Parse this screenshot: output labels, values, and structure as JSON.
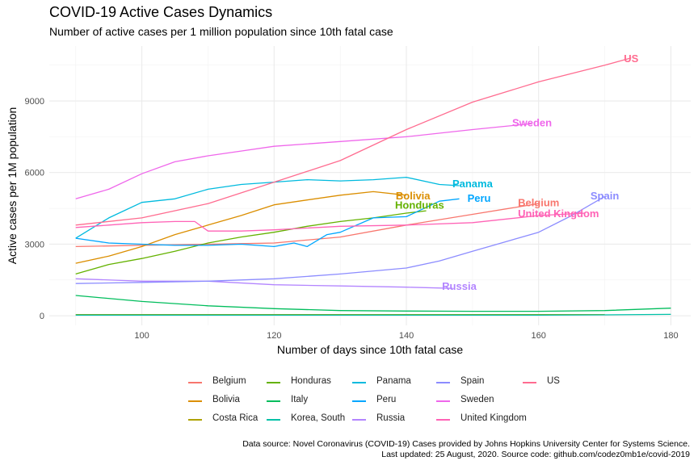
{
  "title": "COVID-19 Active Cases Dynamics",
  "subtitle": "Number of active cases per 1 million population since 10th fatal case",
  "caption_line1": "Data source: Novel Coronavirus (COVID-19) Cases provided by Johns Hopkins University Center for Systems Science.",
  "caption_line2": "Last updated: 25 August, 2020. Source code: github.com/codez0mb1e/covid-2019",
  "chart_data": {
    "type": "line",
    "title": "COVID-19 Active Cases Dynamics",
    "subtitle": "Number of active cases per 1 million population since 10th fatal case",
    "xlabel": "Number of days since 10th fatal case",
    "ylabel": "Active cases per 1M population",
    "xlim": [
      86,
      183
    ],
    "ylim": [
      -400,
      11300
    ],
    "xticks": [
      100,
      120,
      140,
      160,
      180
    ],
    "yticks": [
      0,
      3000,
      6000,
      9000
    ],
    "grid": true,
    "legend_position": "bottom",
    "series": [
      {
        "name": "Belgium",
        "color": "#F8766D",
        "x": [
          90,
          100,
          110,
          120,
          130,
          140,
          150,
          160
        ],
        "y": [
          2900,
          2950,
          3000,
          3050,
          3300,
          3800,
          4250,
          4700
        ],
        "label": "Belgium",
        "label_pos": [
          160,
          4750
        ]
      },
      {
        "name": "Bolivia",
        "color": "#DB8E00",
        "x": [
          90,
          95,
          100,
          105,
          110,
          115,
          120,
          125,
          130,
          135,
          140
        ],
        "y": [
          2200,
          2500,
          2900,
          3400,
          3800,
          4200,
          4650,
          4850,
          5050,
          5200,
          5050
        ],
        "label": "Bolivia",
        "label_pos": [
          141,
          5050
        ]
      },
      {
        "name": "Costa Rica",
        "color": "#AEA200",
        "x": [
          90,
          95,
          100,
          110,
          120,
          130,
          140,
          150,
          160,
          170
        ],
        "y": [
          50,
          50,
          50,
          50,
          50,
          50,
          50,
          50,
          50,
          50
        ]
      },
      {
        "name": "Honduras",
        "color": "#64B200",
        "x": [
          90,
          95,
          100,
          105,
          110,
          115,
          120,
          125,
          130,
          135,
          140,
          143
        ],
        "y": [
          1750,
          2150,
          2400,
          2700,
          3050,
          3300,
          3500,
          3750,
          3950,
          4100,
          4300,
          4400
        ],
        "label": "Honduras",
        "label_pos": [
          142,
          4650
        ]
      },
      {
        "name": "Italy",
        "color": "#00BD5C",
        "x": [
          90,
          100,
          110,
          120,
          130,
          140,
          150,
          160,
          170,
          180
        ],
        "y": [
          850,
          600,
          420,
          300,
          220,
          200,
          190,
          190,
          220,
          320
        ]
      },
      {
        "name": "Korea, South",
        "color": "#00C1A7",
        "x": [
          90,
          95,
          100,
          110,
          120,
          130,
          140,
          150,
          160,
          170,
          180
        ],
        "y": [
          30,
          30,
          30,
          30,
          30,
          30,
          30,
          30,
          30,
          40,
          60
        ]
      },
      {
        "name": "Panama",
        "color": "#00BADE",
        "x": [
          90,
          95,
          100,
          105,
          110,
          115,
          120,
          125,
          130,
          135,
          140,
          145,
          148
        ],
        "y": [
          3250,
          4100,
          4750,
          4900,
          5300,
          5500,
          5600,
          5700,
          5650,
          5700,
          5800,
          5500,
          5450
        ],
        "label": "Panama",
        "label_pos": [
          150,
          5550
        ]
      },
      {
        "name": "Peru",
        "color": "#00A6FF",
        "x": [
          90,
          95,
          100,
          105,
          110,
          115,
          120,
          123,
          125,
          128,
          130,
          135,
          140,
          145,
          148
        ],
        "y": [
          3250,
          3050,
          3000,
          2950,
          2950,
          3000,
          2900,
          3050,
          2900,
          3400,
          3500,
          4100,
          4150,
          4800,
          4900
        ],
        "label": "Peru",
        "label_pos": [
          151,
          4950
        ]
      },
      {
        "name": "Russia",
        "color": "#B385FF",
        "x": [
          90,
          100,
          110,
          120,
          130,
          140,
          147
        ],
        "y": [
          1550,
          1450,
          1450,
          1300,
          1250,
          1200,
          1150
        ],
        "label": "Russia",
        "label_pos": [
          148,
          1250
        ]
      },
      {
        "name": "Spain",
        "color": "#8C8CFF",
        "x": [
          90,
          100,
          110,
          120,
          130,
          140,
          145,
          150,
          155,
          160,
          165,
          170
        ],
        "y": [
          1350,
          1400,
          1450,
          1550,
          1750,
          2000,
          2300,
          2700,
          3100,
          3500,
          4200,
          5000
        ],
        "label": "Spain",
        "label_pos": [
          170,
          5050
        ]
      },
      {
        "name": "Sweden",
        "color": "#EF67EB",
        "x": [
          90,
          95,
          100,
          105,
          110,
          115,
          120,
          130,
          140,
          150,
          159
        ],
        "y": [
          4900,
          5300,
          5950,
          6450,
          6700,
          6900,
          7100,
          7300,
          7500,
          7800,
          8050
        ],
        "label": "Sweden",
        "label_pos": [
          159,
          8100
        ]
      },
      {
        "name": "United Kingdom",
        "color": "#FF63B6",
        "x": [
          90,
          95,
          100,
          105,
          108,
          110,
          115,
          120,
          130,
          140,
          150,
          160,
          167
        ],
        "y": [
          3700,
          3800,
          3900,
          3950,
          3950,
          3550,
          3550,
          3600,
          3750,
          3800,
          3900,
          4200,
          4300
        ],
        "label": "United Kingdom",
        "label_pos": [
          163,
          4300
        ]
      },
      {
        "name": "US",
        "color": "#FF6C90",
        "x": [
          90,
          100,
          110,
          120,
          130,
          140,
          150,
          160,
          170,
          174
        ],
        "y": [
          3800,
          4100,
          4700,
          5600,
          6500,
          7800,
          8950,
          9800,
          10500,
          10800
        ],
        "label": "US",
        "label_pos": [
          174,
          10800
        ]
      }
    ]
  },
  "legend_columns": [
    [
      "Belgium",
      "Bolivia",
      "Costa Rica"
    ],
    [
      "Honduras",
      "Italy",
      "Korea, South"
    ],
    [
      "Panama",
      "Peru",
      "Russia"
    ],
    [
      "Spain",
      "Sweden",
      "United Kingdom"
    ],
    [
      "US"
    ]
  ]
}
